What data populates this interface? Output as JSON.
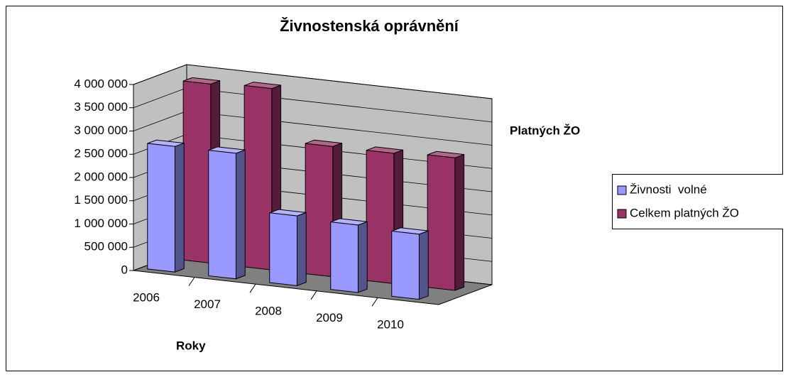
{
  "chart_data": {
    "type": "bar3d",
    "title": "Živnostenská oprávnění",
    "x_label": "Roky",
    "y_label": "Platných ŽO",
    "categories": [
      "2006",
      "2007",
      "2008",
      "2009",
      "2010"
    ],
    "series": [
      {
        "name": "Živnosti  volné",
        "color": "#9999ff",
        "values": [
          2700000,
          2700000,
          1500000,
          1450000,
          1400000
        ]
      },
      {
        "name": "Celkem platných ŽO",
        "color": "#993366",
        "values": [
          3850000,
          3900000,
          2800000,
          2800000,
          2850000
        ]
      }
    ],
    "ylim": [
      0,
      4000000
    ],
    "yticks": [
      0,
      {
        "value": 500000,
        "label": "500 000"
      },
      {
        "value": 1000000,
        "label": "1 000 000"
      },
      {
        "value": 1500000,
        "label": "1 500 000"
      },
      {
        "value": 2000000,
        "label": "2 000 000"
      },
      {
        "value": 2500000,
        "label": "2 500 000"
      },
      {
        "value": 3000000,
        "label": "3 000 000"
      },
      {
        "value": 3500000,
        "label": "3 500 000"
      },
      {
        "value": 4000000,
        "label": "4 000 000"
      }
    ],
    "grid": true,
    "legend": "right"
  }
}
